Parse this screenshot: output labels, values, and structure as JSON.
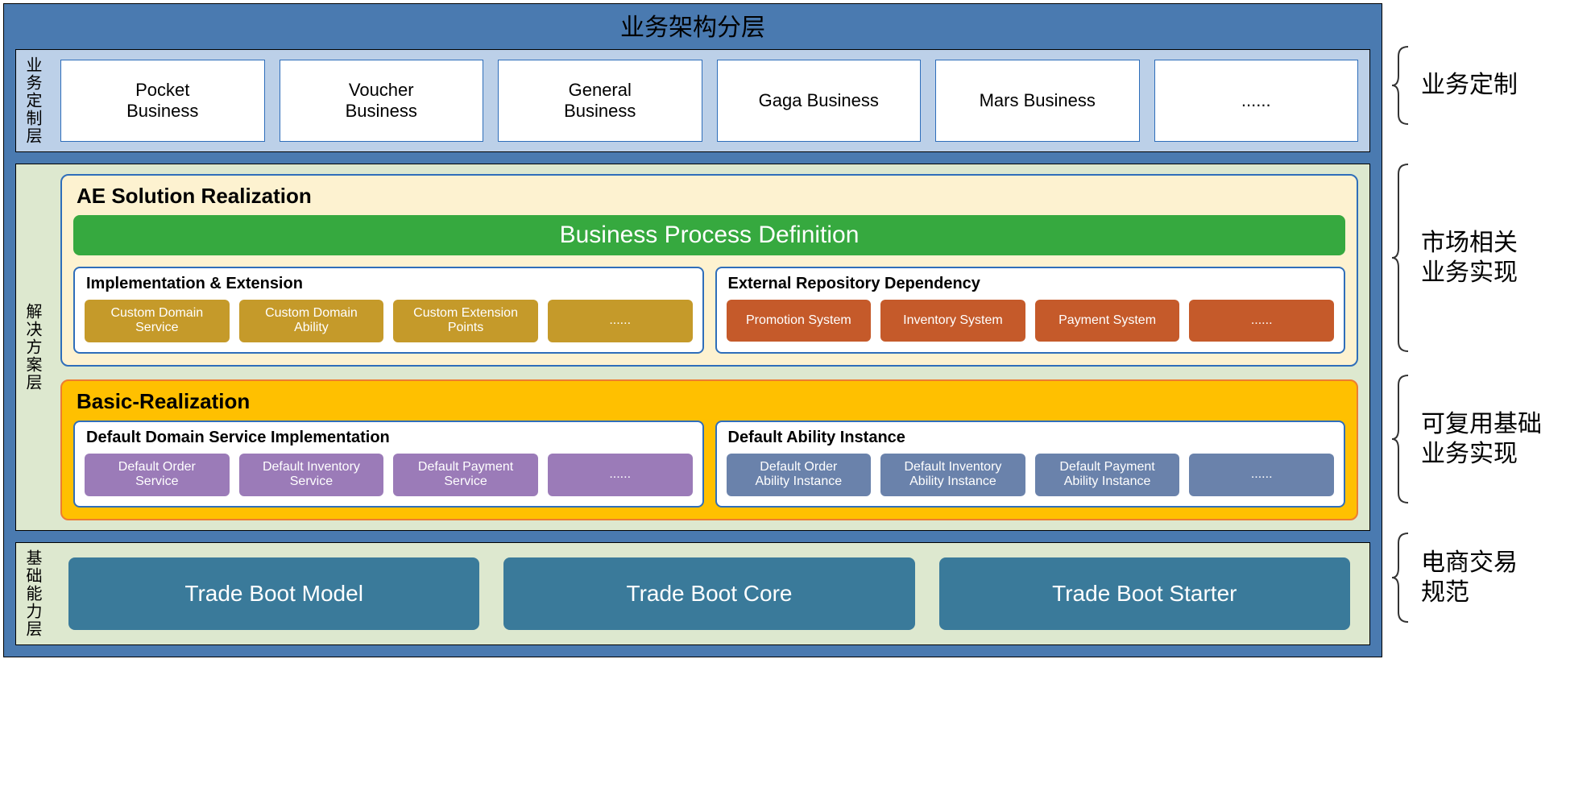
{
  "colors": {
    "frame_bg": "#4a7ab0",
    "l1_bg": "#bcd0e8",
    "l2_bg": "#dde8cf",
    "l3_bg": "#dde8cf",
    "ae_panel_bg": "#fdf2d0",
    "ae_panel_border": "#2f6eba",
    "basic_panel_bg": "#ffc000",
    "basic_panel_border": "#ed7d31",
    "green_bar": "#36a93f",
    "chip_gold": "#c59a2a",
    "chip_orange": "#c55a2a",
    "chip_purple": "#9b7bb8",
    "chip_slate": "#6a82ab",
    "trade_box": "#3a7a9a",
    "brace": "#333333"
  },
  "title": "业务架构分层",
  "layer1": {
    "vlabel": "业务定制层",
    "items": [
      "Pocket Business",
      "Voucher Business",
      "General Business",
      "Gaga Business",
      "Mars Business",
      "......"
    ]
  },
  "layer2": {
    "vlabel": "解决方案层",
    "ae": {
      "title": "AE Solution Realization",
      "green_bar": "Business Process Definition",
      "left": {
        "title": "Implementation & Extension",
        "chips": [
          "Custom Domain Service",
          "Custom Domain Ability",
          "Custom Extension Points",
          "......"
        ]
      },
      "right": {
        "title": "External Repository Dependency",
        "chips": [
          "Promotion System",
          "Inventory System",
          "Payment System",
          "......"
        ]
      }
    },
    "basic": {
      "title": "Basic-Realization",
      "left": {
        "title": "Default Domain Service Implementation",
        "chips": [
          "Default Order Service",
          "Default Inventory Service",
          "Default Payment Service",
          "......"
        ]
      },
      "right": {
        "title": "Default Ability Instance",
        "chips": [
          "Default Order Ability Instance",
          "Default Inventory Ability Instance",
          "Default Payment Ability Instance",
          "......"
        ]
      }
    }
  },
  "layer3": {
    "vlabel": "基础能力层",
    "items": [
      "Trade Boot Model",
      "Trade Boot Core",
      "Trade Boot Starter"
    ]
  },
  "annotations": {
    "a1": "业务定制",
    "a2": "市场相关\n业务实现",
    "a3": "可复用基础\n业务实现",
    "a4": "电商交易\n规范"
  },
  "layout": {
    "title_h": 48,
    "l1_h": 108,
    "ae_h": 256,
    "basic_h": 170,
    "l3_h": 122,
    "gap": 14
  }
}
